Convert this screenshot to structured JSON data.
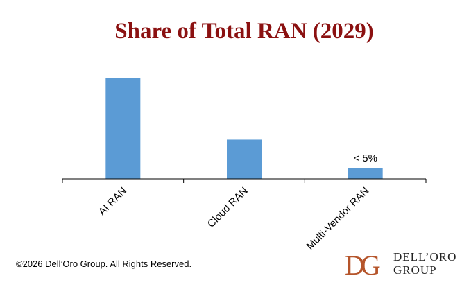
{
  "chart_data": {
    "type": "bar",
    "title": "Share of Total RAN (2029)",
    "categories": [
      "AI RAN",
      "Cloud RAN",
      "Multi-Vendor RAN"
    ],
    "values": [
      100,
      39,
      11
    ],
    "data_labels": [
      "",
      "",
      "< 5%"
    ],
    "ylim": [
      0,
      100
    ],
    "xlabel": "",
    "ylabel": "",
    "grid": false,
    "bar_color": "#5B9BD5"
  },
  "footer": {
    "copyright": "©2026 Dell’Oro Group. All Rights Reserved."
  },
  "logo": {
    "monogram": "DG",
    "line1": "DELL’ORO",
    "line2": "GROUP",
    "color": "#B5542A"
  }
}
